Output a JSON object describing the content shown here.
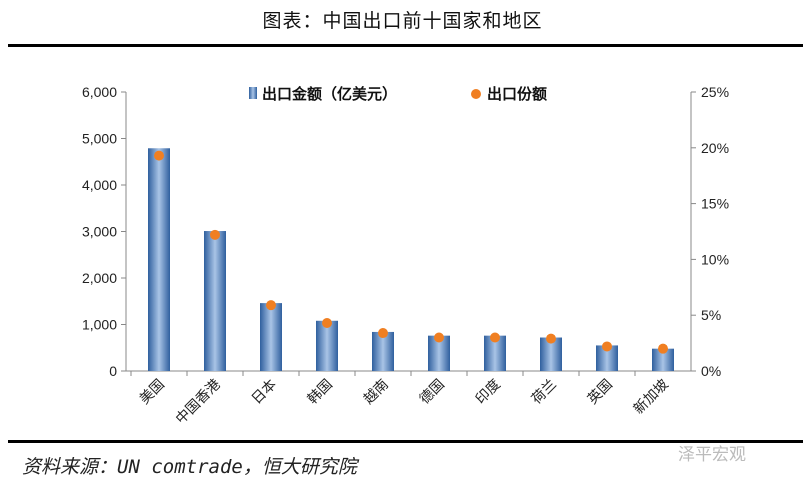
{
  "title": "图表：中国出口前十国家和地区",
  "source": "资料来源：UN comtrade，恒大研究院",
  "watermark": "泽平宏观",
  "colors": {
    "bar": "#4f81bd",
    "dot": "#f07f22"
  },
  "chart_data": {
    "type": "bar",
    "categories": [
      "美国",
      "中国香港",
      "日本",
      "韩国",
      "越南",
      "德国",
      "印度",
      "荷兰",
      "英国",
      "新加坡"
    ],
    "series": [
      {
        "name": "出口金额（亿美元）",
        "type": "bar",
        "axis": "left",
        "values": [
          4790,
          3010,
          1460,
          1080,
          840,
          760,
          760,
          720,
          550,
          480
        ]
      },
      {
        "name": "出口份额",
        "type": "scatter",
        "axis": "right",
        "values": [
          19.3,
          12.2,
          5.9,
          4.3,
          3.4,
          3.0,
          3.0,
          2.9,
          2.2,
          2.0
        ]
      }
    ],
    "ylim": [
      0,
      6000
    ],
    "y_ticks": [
      "0",
      "1,000",
      "2,000",
      "3,000",
      "4,000",
      "5,000",
      "6,000"
    ],
    "y2lim": [
      0,
      25
    ],
    "y2_ticks": [
      "0%",
      "5%",
      "10%",
      "15%",
      "20%",
      "25%"
    ],
    "legend": "top",
    "grid": false
  }
}
